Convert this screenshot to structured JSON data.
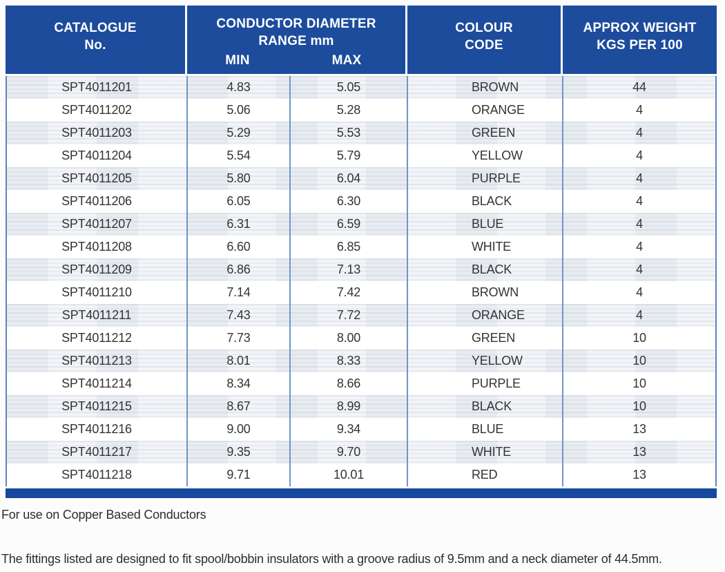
{
  "table": {
    "header": {
      "catalogue_line1": "CATALOGUE",
      "catalogue_line2": "No.",
      "diameter_line1": "CONDUCTOR DIAMETER",
      "diameter_line2": "RANGE mm",
      "min_label": "MIN",
      "max_label": "MAX",
      "colour_line1": "COLOUR",
      "colour_line2": "CODE",
      "weight_line1": "APPROX WEIGHT",
      "weight_line2": "KGS PER 100"
    },
    "rows": [
      {
        "catalogue": "SPT4011201",
        "min": "4.83",
        "max": "5.05",
        "colour": "BROWN",
        "weight": "44"
      },
      {
        "catalogue": "SPT4011202",
        "min": "5.06",
        "max": "5.28",
        "colour": "ORANGE",
        "weight": "4"
      },
      {
        "catalogue": "SPT4011203",
        "min": "5.29",
        "max": "5.53",
        "colour": "GREEN",
        "weight": "4"
      },
      {
        "catalogue": "SPT4011204",
        "min": "5.54",
        "max": "5.79",
        "colour": "YELLOW",
        "weight": "4"
      },
      {
        "catalogue": "SPT4011205",
        "min": "5.80",
        "max": "6.04",
        "colour": "PURPLE",
        "weight": "4"
      },
      {
        "catalogue": "SPT4011206",
        "min": "6.05",
        "max": "6.30",
        "colour": "BLACK",
        "weight": "4"
      },
      {
        "catalogue": "SPT4011207",
        "min": "6.31",
        "max": "6.59",
        "colour": "BLUE",
        "weight": "4"
      },
      {
        "catalogue": "SPT4011208",
        "min": "6.60",
        "max": "6.85",
        "colour": "WHITE",
        "weight": "4"
      },
      {
        "catalogue": "SPT4011209",
        "min": "6.86",
        "max": "7.13",
        "colour": "BLACK",
        "weight": "4"
      },
      {
        "catalogue": "SPT4011210",
        "min": "7.14",
        "max": "7.42",
        "colour": "BROWN",
        "weight": "4"
      },
      {
        "catalogue": "SPT4011211",
        "min": "7.43",
        "max": "7.72",
        "colour": "ORANGE",
        "weight": "4"
      },
      {
        "catalogue": "SPT4011212",
        "min": "7.73",
        "max": "8.00",
        "colour": "GREEN",
        "weight": "10"
      },
      {
        "catalogue": "SPT4011213",
        "min": "8.01",
        "max": "8.33",
        "colour": "YELLOW",
        "weight": "10"
      },
      {
        "catalogue": "SPT4011214",
        "min": "8.34",
        "max": "8.66",
        "colour": "PURPLE",
        "weight": "10"
      },
      {
        "catalogue": "SPT4011215",
        "min": "8.67",
        "max": "8.99",
        "colour": "BLACK",
        "weight": "10"
      },
      {
        "catalogue": "SPT4011216",
        "min": "9.00",
        "max": "9.34",
        "colour": "BLUE",
        "weight": "13"
      },
      {
        "catalogue": "SPT4011217",
        "min": "9.35",
        "max": "9.70",
        "colour": "WHITE",
        "weight": "13"
      },
      {
        "catalogue": "SPT4011218",
        "min": "9.71",
        "max": "10.01",
        "colour": "RED",
        "weight": "13"
      }
    ]
  },
  "notes": {
    "note1": "For use on Copper Based Conductors",
    "note2": "The fittings listed are designed to fit spool/bobbin insulators with a groove radius of 9.5mm and a neck diameter of 44.5mm."
  },
  "colors": {
    "header_blue": "#1d4c9d",
    "bottom_bar_blue": "#16499d",
    "divider_blue": "#6e95c8",
    "row_shade": "#eef1f5"
  }
}
